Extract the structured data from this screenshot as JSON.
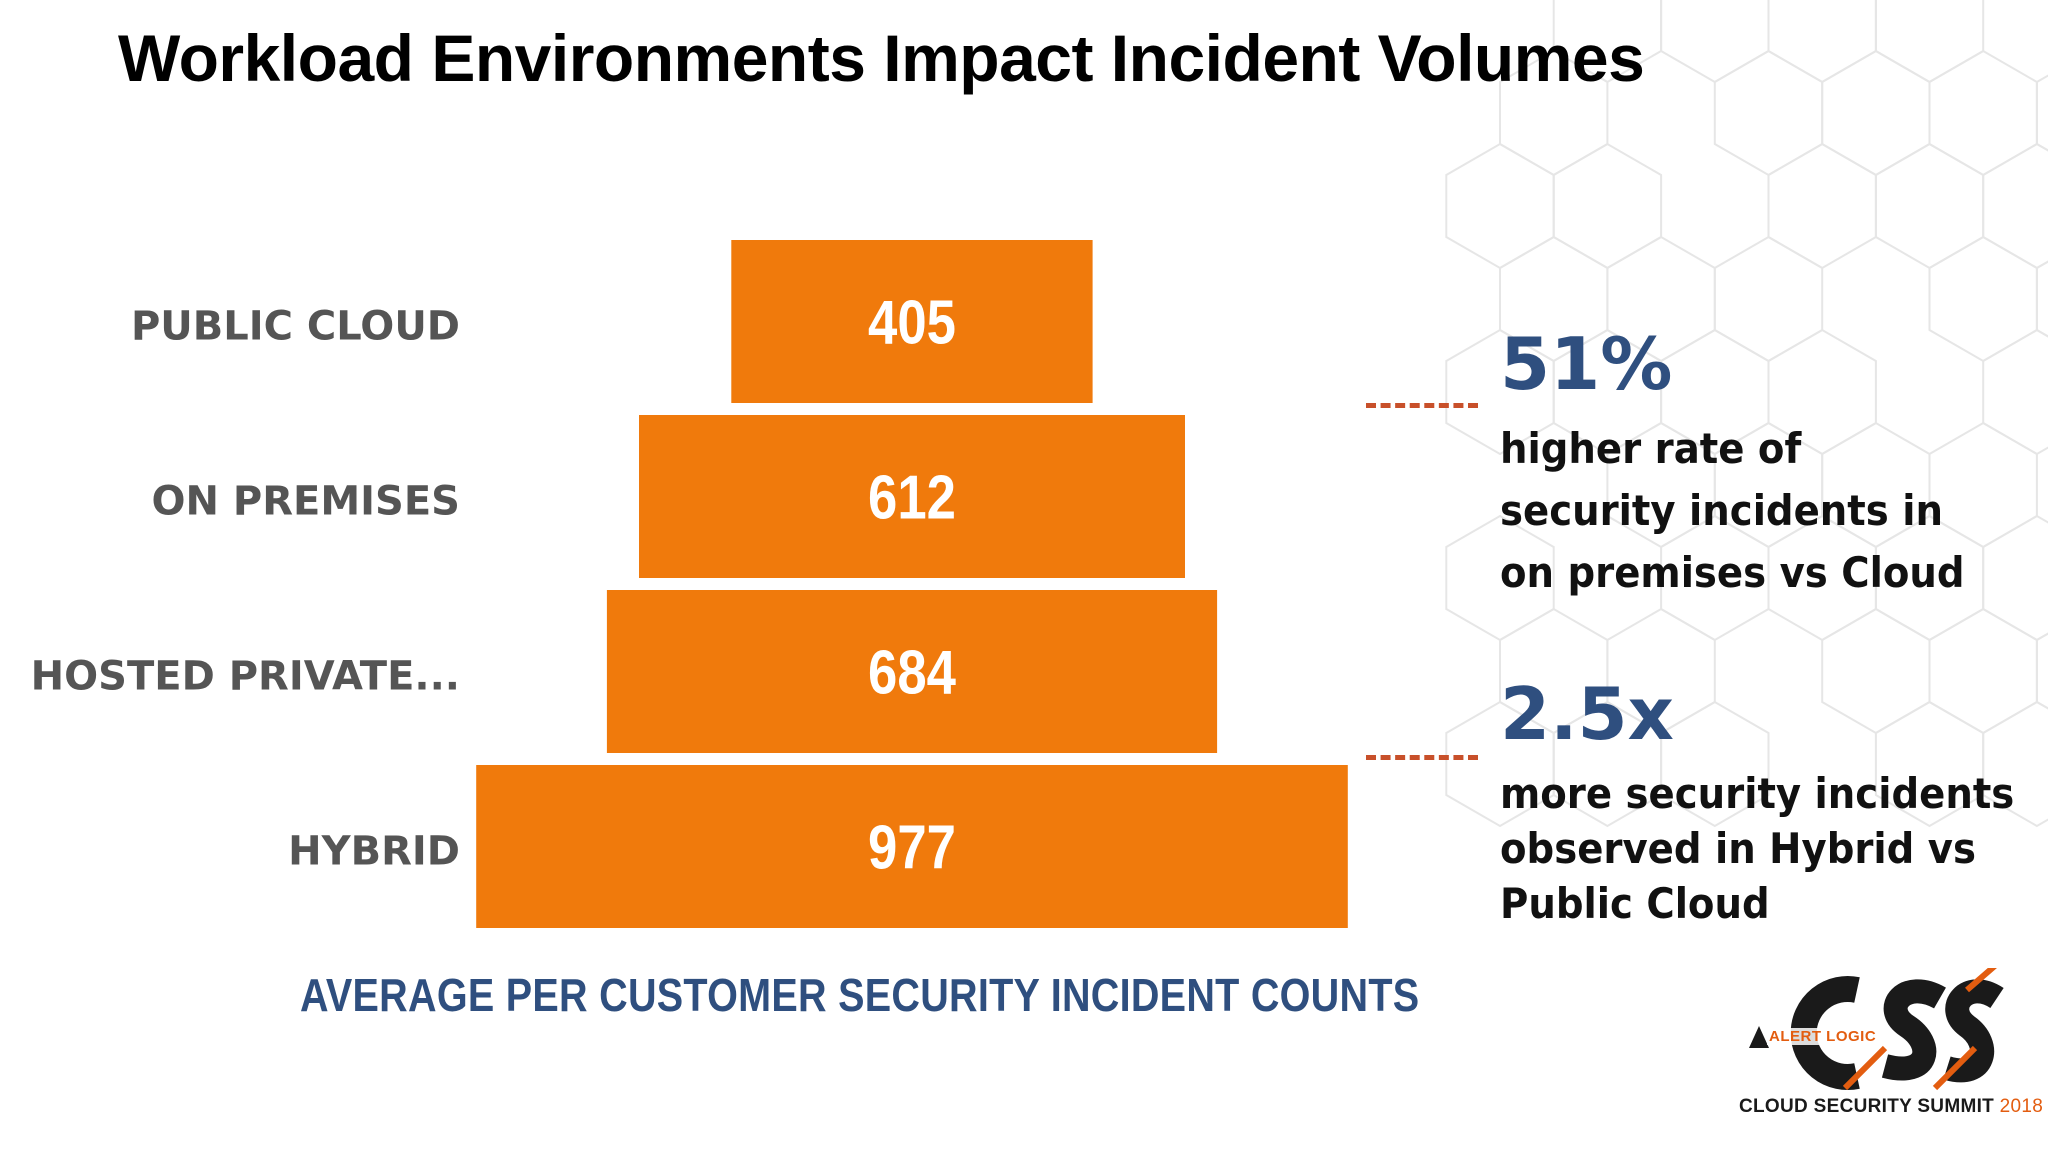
{
  "title": "Workload Environments Impact Incident Volumes",
  "chart_data": {
    "type": "bar",
    "orientation": "horizontal-centered",
    "categories": [
      "PUBLIC CLOUD",
      "ON PREMISES",
      "HOSTED PRIVATE...",
      "HYBRID"
    ],
    "values": [
      405,
      612,
      684,
      977
    ],
    "title": "AVERAGE PER CUSTOMER SECURITY INCIDENT COUNTS",
    "bar_color": "#f07a0c",
    "value_label_color": "#ffffff",
    "category_label_color": "#555555",
    "legend": "none",
    "grid": false
  },
  "callouts": [
    {
      "value": "51%",
      "lines": [
        "higher rate of",
        "security incidents in",
        "on premises vs Cloud"
      ]
    },
    {
      "value": "2.5x",
      "lines": [
        "more security incidents",
        "observed in Hybrid vs",
        "Public Cloud"
      ]
    }
  ],
  "logo": {
    "brand": "ALERT LOGIC",
    "mark": "CSS",
    "tagline": "CLOUD SECURITY SUMMIT",
    "year": "2018"
  },
  "colors": {
    "accent": "#f07a0c",
    "stat_blue": "#2f4f7f",
    "leader_line": "#c8502a"
  }
}
